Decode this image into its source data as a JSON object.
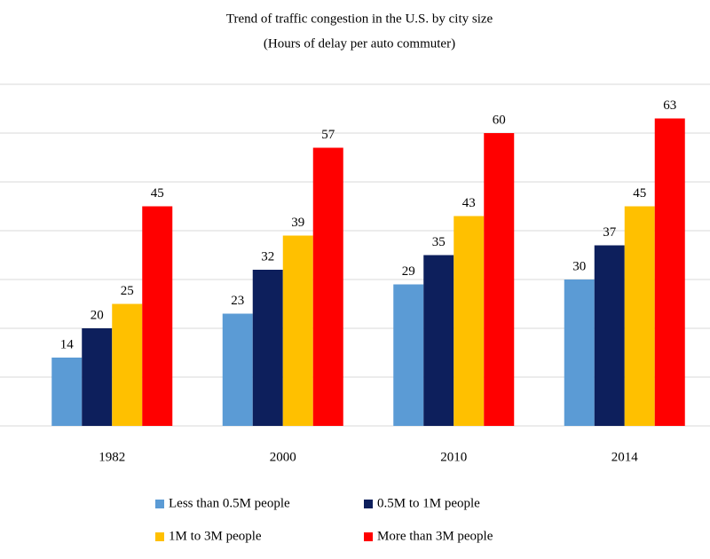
{
  "chart_data": {
    "type": "bar",
    "title": "Trend of traffic congestion in the U.S. by city size",
    "subtitle": "(Hours of delay per auto commuter)",
    "categories": [
      "1982",
      "2000",
      "2010",
      "2014"
    ],
    "series": [
      {
        "name": "Less than 0.5M people",
        "color": "#5b9bd5",
        "values": [
          14,
          23,
          29,
          30
        ]
      },
      {
        "name": "0.5M to 1M people",
        "color": "#0d1f5c",
        "values": [
          20,
          32,
          35,
          37
        ]
      },
      {
        "name": "1M to 3M people",
        "color": "#ffc000",
        "values": [
          25,
          39,
          43,
          45
        ]
      },
      {
        "name": "More than 3M people",
        "color": "#ff0000",
        "values": [
          45,
          57,
          60,
          63
        ]
      }
    ],
    "ylim": [
      0,
      70
    ],
    "yticks": [
      0,
      10,
      20,
      30,
      40,
      50,
      60,
      70
    ],
    "grid": true,
    "legend": "bottom"
  }
}
